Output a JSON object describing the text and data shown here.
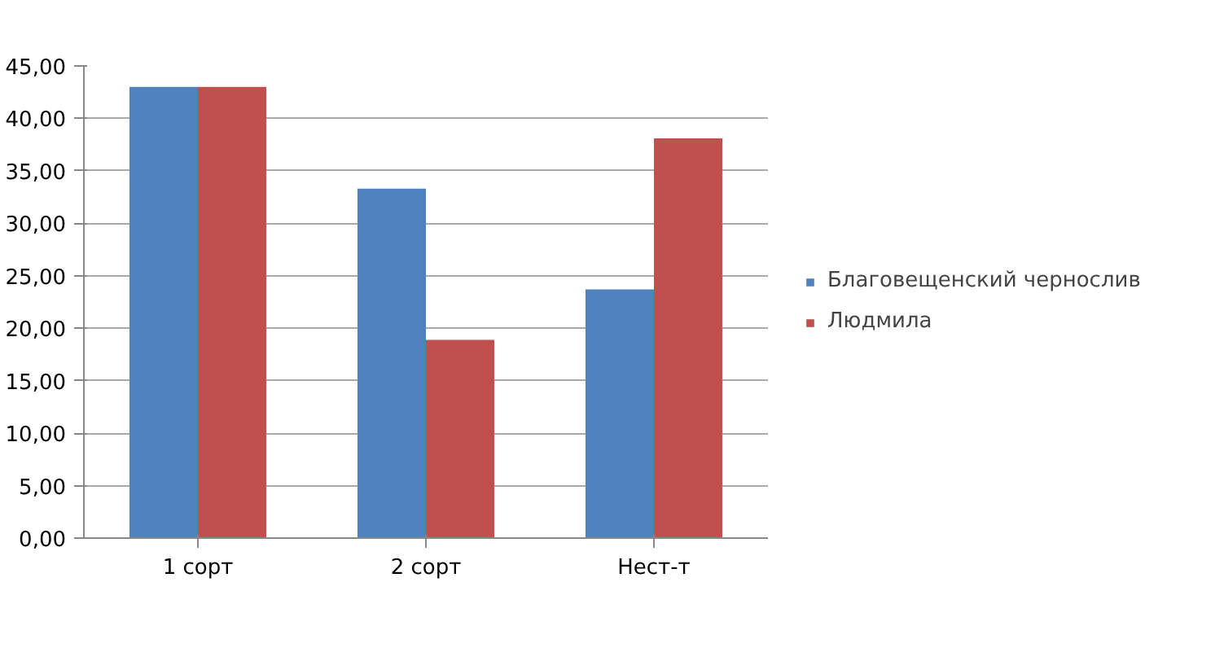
{
  "chart_data": {
    "type": "bar",
    "categories": [
      "1 сорт",
      "2 сорт",
      "Нест-т"
    ],
    "series": [
      {
        "name": "Благовещенский чернослив",
        "color": "#4f81bd",
        "values": [
          43.0,
          33.3,
          23.7
        ]
      },
      {
        "name": "Людмила",
        "color": "#c0504d",
        "values": [
          43.0,
          18.9,
          38.1
        ]
      }
    ],
    "ylim": [
      0,
      45
    ],
    "yticks": [
      {
        "value": 0,
        "label": "0,00"
      },
      {
        "value": 5,
        "label": "5,00"
      },
      {
        "value": 10,
        "label": "10,00"
      },
      {
        "value": 15,
        "label": "15,00"
      },
      {
        "value": 20,
        "label": "20,00"
      },
      {
        "value": 25,
        "label": "25,00"
      },
      {
        "value": 30,
        "label": "30,00"
      },
      {
        "value": 35,
        "label": "35,00"
      },
      {
        "value": 40,
        "label": "40,00"
      },
      {
        "value": 45,
        "label": "45,00"
      }
    ],
    "grid": "y",
    "legend": "right"
  }
}
